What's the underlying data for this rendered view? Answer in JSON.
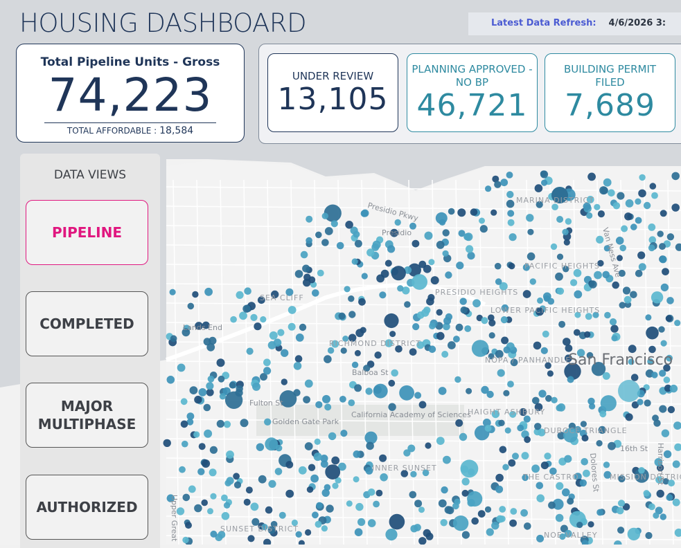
{
  "header": {
    "title": "HOUSING DASHBOARD",
    "refresh_label": "Latest Data Refresh:",
    "refresh_value": "4/6/2026 3:"
  },
  "total_card": {
    "title": "Total Pipeline Units - Gross",
    "value": "74,223",
    "affordable_label": "TOTAL AFFORDABLE :",
    "affordable_value": "18,584"
  },
  "status_cards": [
    {
      "label": "UNDER REVIEW",
      "value": "13,105"
    },
    {
      "label": "PLANNING APPROVED - NO BP",
      "value": "46,721"
    },
    {
      "label": "BUILDING PERMIT FILED",
      "value": "7,689"
    }
  ],
  "data_views": {
    "title": "DATA VIEWS",
    "buttons": [
      "PIPELINE",
      "COMPLETED",
      "MAJOR MULTIPHASE",
      "AUTHORIZED"
    ]
  },
  "map_labels": [
    "Presidio Pkwy",
    "Presidio",
    "MARINA DISTRICT",
    "SEA CLIFF",
    "Lands End",
    "PRESIDIO HEIGHTS",
    "LOWER PACIFIC HEIGHTS",
    "PACIFIC HEIGHTS",
    "RICHMOND DISTRICT",
    "Balboa St",
    "NOPA / PANHANDLE",
    "San Francisco",
    "Fulton St",
    "Golden Gate Park",
    "California Academy of Sciences",
    "HAIGHT ASHBURY",
    "DUBOCE TRIANGLE",
    "INNER SUNSET",
    "THE CASTRO",
    "MISSION DISTRICT",
    "SUNSET DISTRICT",
    "NOE VALLEY",
    "Upper Great Hwy",
    "Van Ness Ave",
    "Dolores St",
    "Harrison St",
    "16th St"
  ]
}
